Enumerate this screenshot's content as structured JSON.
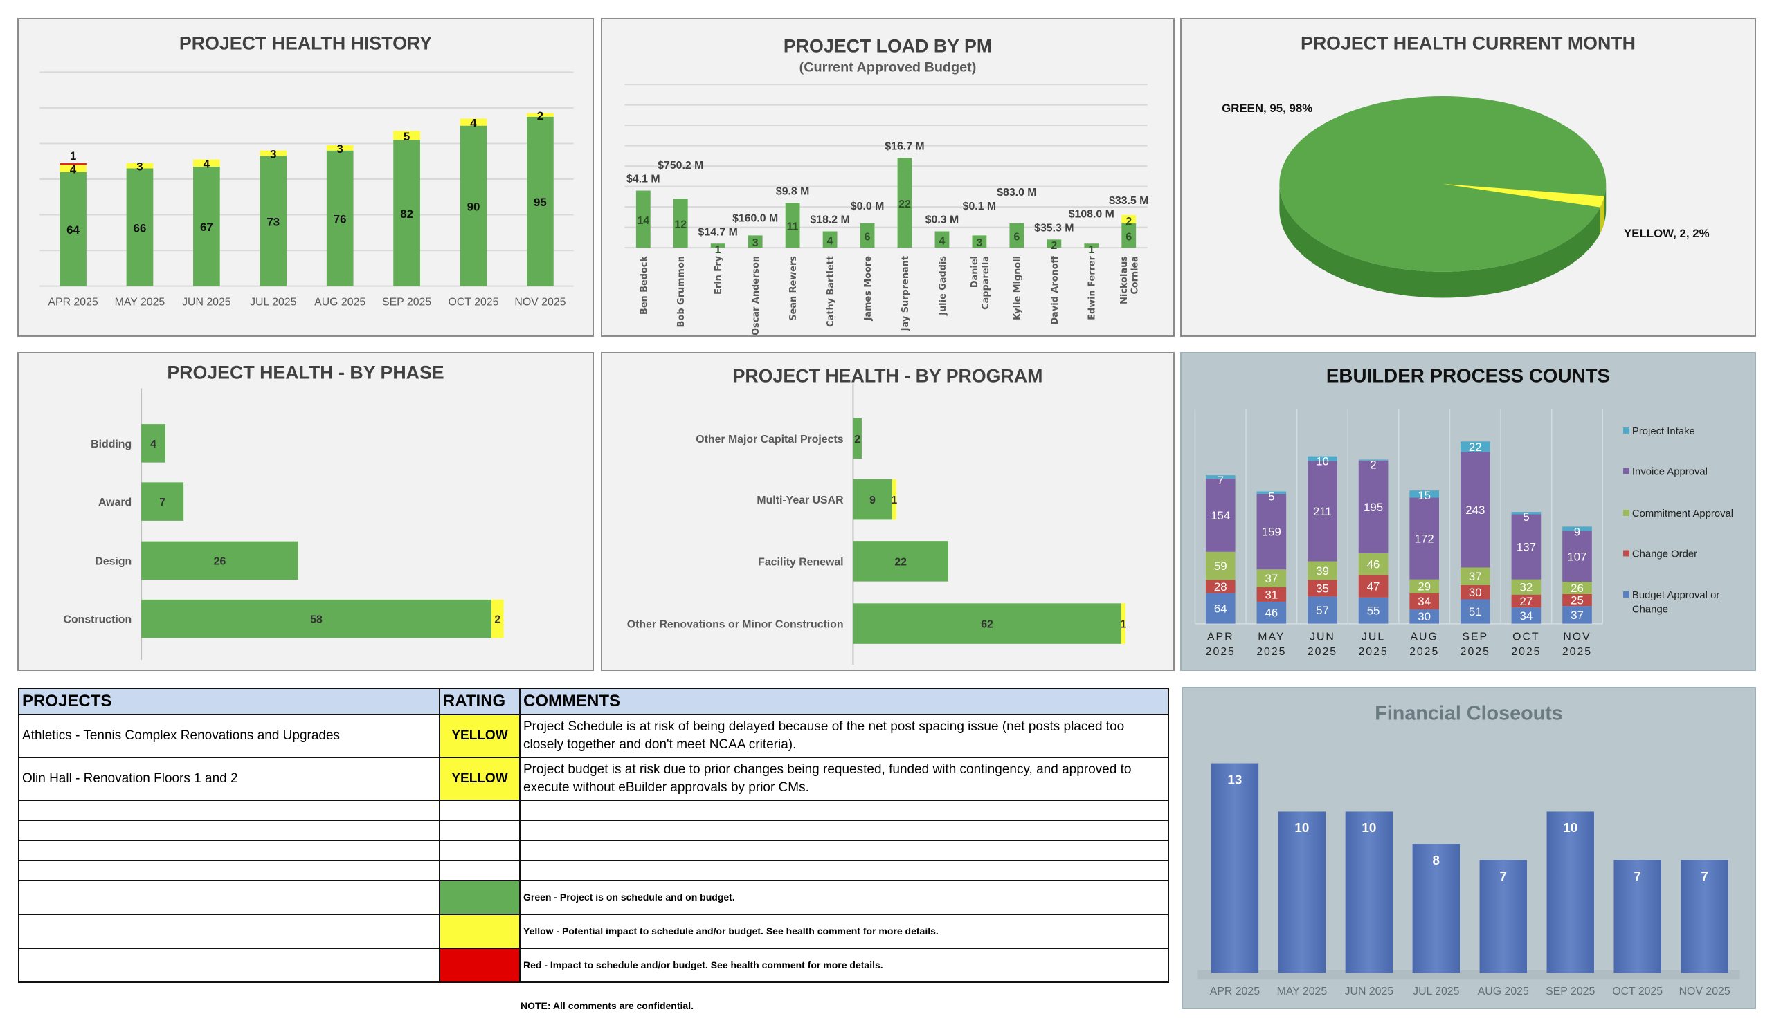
{
  "colors": {
    "green": "#63ad56",
    "yellow": "#fdfc3a",
    "red": "#d62d20",
    "budget": "#5a7fc1",
    "change_order": "#bf4b48",
    "commitment": "#9cba5a",
    "invoice": "#7c62a2",
    "intake": "#4fa9c8",
    "closeout": "#5676bb"
  },
  "chart_data": [
    {
      "id": "history",
      "type": "bar",
      "stacked": true,
      "title": "PROJECT HEALTH HISTORY",
      "categories": [
        "APR 2025",
        "MAY 2025",
        "JUN 2025",
        "JUL 2025",
        "AUG 2025",
        "SEP 2025",
        "OCT 2025",
        "NOV 2025"
      ],
      "series": [
        {
          "color": "#63ad56",
          "values": [
            64,
            66,
            67,
            73,
            76,
            82,
            90,
            95
          ]
        },
        {
          "color": "#fdfc3a",
          "values": [
            4,
            3,
            4,
            3,
            3,
            5,
            4,
            2
          ]
        },
        {
          "color": "#d62d20",
          "values": [
            1,
            0,
            0,
            0,
            0,
            0,
            0,
            0
          ]
        }
      ],
      "ylim": [
        0,
        120
      ],
      "grid": true
    },
    {
      "id": "load",
      "type": "bar",
      "stacked": true,
      "title": "PROJECT LOAD BY PM",
      "subtitle": "(Current Approved Budget)",
      "categories": [
        [
          "Ben Bedock"
        ],
        [
          "Bob Grummon"
        ],
        [
          "Erin Fry"
        ],
        [
          "Oscar Anderson"
        ],
        [
          "Sean Rewers"
        ],
        [
          "Cathy Bartlett"
        ],
        [
          "James Moore"
        ],
        [
          "Jay Surprenant"
        ],
        [
          "Julie Gaddis"
        ],
        [
          "Daniel",
          "Capparella"
        ],
        [
          "Kylie Mignoli"
        ],
        [
          "David Aronoff"
        ],
        [
          "Edwin Ferrer"
        ],
        [
          "Nickolaus",
          "Corniea"
        ]
      ],
      "series": [
        {
          "color": "#63ad56",
          "values": [
            14,
            12,
            1,
            3,
            11,
            4,
            6,
            22,
            4,
            3,
            6,
            2,
            1,
            6
          ]
        },
        {
          "color": "#fdfc3a",
          "values": [
            0,
            0,
            0,
            0,
            0,
            0,
            0,
            0,
            0,
            0,
            0,
            0,
            0,
            2
          ]
        }
      ],
      "budget_labels": [
        "$4.1 M",
        "$750.2 M",
        "$14.7 M",
        "$160.0 M",
        "$9.8 M",
        "$18.2 M",
        "$0.0 M",
        "$16.7 M",
        "$0.3 M",
        "$0.1 M",
        "$83.0 M",
        "$35.3 M",
        "$108.0 M",
        "$33.5 M"
      ],
      "ylim": [
        0,
        40
      ],
      "grid": true
    },
    {
      "id": "current",
      "type": "pie",
      "title": "PROJECT HEALTH CURRENT MONTH",
      "slices": [
        {
          "label": "GREEN",
          "value": 95,
          "percent": "98%",
          "data_label": "GREEN, 95, 98%",
          "color": "#5aa84a"
        },
        {
          "label": "YELLOW",
          "value": 2,
          "percent": "2%",
          "data_label": "YELLOW, 2, 2%",
          "color": "#fdfc3a"
        }
      ]
    },
    {
      "id": "phase",
      "type": "bar",
      "orientation": "horizontal",
      "stacked": true,
      "title": "PROJECT HEALTH - BY PHASE",
      "categories": [
        "Bidding",
        "Award",
        "Design",
        "Construction"
      ],
      "series": [
        {
          "color": "#63ad56",
          "values": [
            4,
            7,
            26,
            58
          ]
        },
        {
          "color": "#fdfc3a",
          "values": [
            0,
            0,
            0,
            2
          ]
        }
      ],
      "xlim": [
        0,
        70
      ]
    },
    {
      "id": "program",
      "type": "bar",
      "orientation": "horizontal",
      "stacked": true,
      "title": "PROJECT HEALTH - BY PROGRAM",
      "categories": [
        "Other Major Capital Projects",
        "Multi-Year USAR",
        "Facility Renewal",
        "Other Renovations or Minor Construction"
      ],
      "series": [
        {
          "color": "#63ad56",
          "values": [
            2,
            9,
            22,
            62
          ]
        },
        {
          "color": "#fdfc3a",
          "values": [
            0,
            1,
            0,
            1
          ]
        }
      ],
      "xlim": [
        0,
        70
      ]
    },
    {
      "id": "ebuilder",
      "type": "bar",
      "stacked": true,
      "title": "EBUILDER PROCESS COUNTS",
      "categories": [
        [
          "APR",
          "2025"
        ],
        [
          "MAY",
          "2025"
        ],
        [
          "JUN",
          "2025"
        ],
        [
          "JUL",
          "2025"
        ],
        [
          "AUG",
          "2025"
        ],
        [
          "SEP",
          "2025"
        ],
        [
          "OCT",
          "2025"
        ],
        [
          "NOV",
          "2025"
        ]
      ],
      "series": [
        {
          "name": "Budget Approval or Change",
          "legend_lines": [
            "Budget Approval or",
            "Change"
          ],
          "color": "#5a7fc1",
          "values": [
            64,
            46,
            57,
            55,
            30,
            51,
            34,
            37
          ]
        },
        {
          "name": "Change Order",
          "legend_lines": [
            "Change Order"
          ],
          "color": "#bf4b48",
          "values": [
            28,
            31,
            35,
            47,
            34,
            30,
            27,
            25
          ]
        },
        {
          "name": "Commitment Approval",
          "legend_lines": [
            "Commitment Approval"
          ],
          "color": "#9cba5a",
          "values": [
            59,
            37,
            39,
            46,
            29,
            37,
            32,
            26
          ]
        },
        {
          "name": "Invoice Approval",
          "legend_lines": [
            "Invoice Approval"
          ],
          "color": "#7c62a2",
          "values": [
            154,
            159,
            211,
            195,
            172,
            243,
            137,
            107
          ]
        },
        {
          "name": "Project Intake",
          "legend_lines": [
            "Project Intake"
          ],
          "color": "#4fa9c8",
          "values": [
            7,
            5,
            10,
            2,
            15,
            22,
            5,
            9
          ]
        }
      ],
      "legend": "right",
      "ylim": [
        0,
        450
      ]
    },
    {
      "id": "closeouts",
      "type": "bar",
      "title": "Financial Closeouts",
      "categories": [
        "APR 2025",
        "MAY 2025",
        "JUN 2025",
        "JUL 2025",
        "AUG 2025",
        "SEP 2025",
        "OCT 2025",
        "NOV 2025"
      ],
      "values": [
        13,
        10,
        10,
        8,
        7,
        10,
        7,
        7
      ],
      "ylim": [
        0,
        15
      ]
    }
  ],
  "table": {
    "headers": {
      "projects": "PROJECTS",
      "rating": "RATING",
      "comments": "COMMENTS"
    },
    "rows": [
      {
        "project": "Athletics - Tennis Complex Renovations and Upgrades",
        "rating": "YELLOW",
        "comment": "Project Schedule is at risk of being delayed because of the net post spacing issue (net posts placed too closely together and don't meet NCAA criteria)."
      },
      {
        "project": "Olin Hall - Renovation Floors 1 and 2",
        "rating": "YELLOW",
        "comment": "Project budget is at risk due to prior changes being requested, funded with contingency, and approved to execute without eBuilder approvals by prior CMs."
      }
    ],
    "legend": {
      "green": "Green - Project is on schedule and on budget.",
      "yellow": "Yellow - Potential impact to schedule and/or budget. See health comment for more details.",
      "red": "Red - Impact to schedule and/or budget. See health comment for more details."
    },
    "note": "NOTE:  All comments are confidential."
  }
}
